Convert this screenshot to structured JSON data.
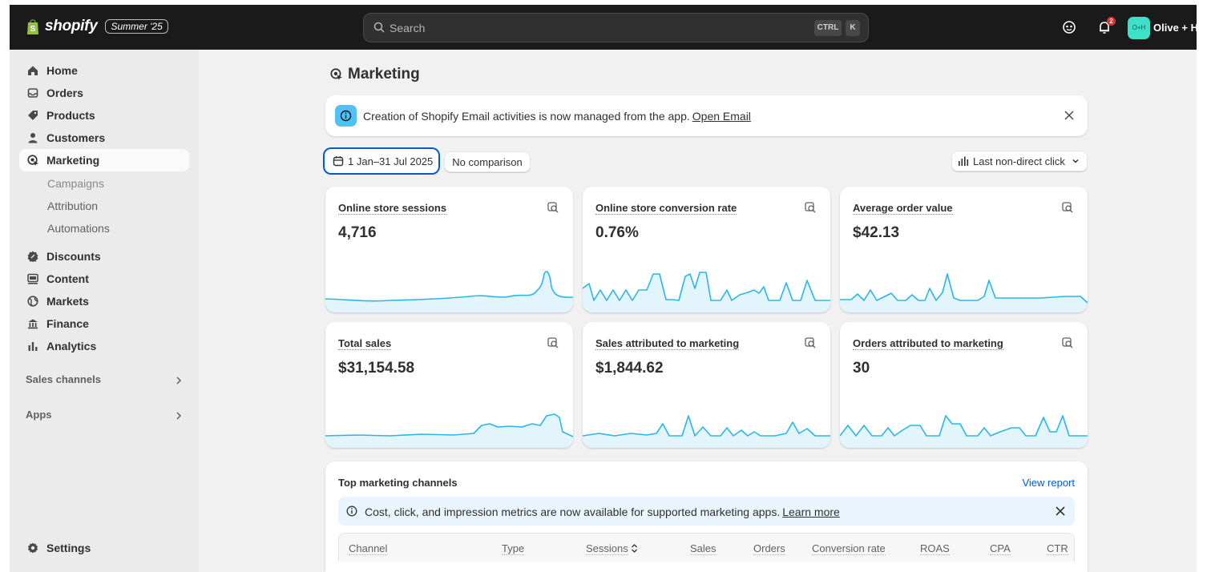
{
  "topbar": {
    "brand": "shopify",
    "edition_badge": "Summer '25",
    "search_placeholder": "Search",
    "shortcut_key1": "CTRL",
    "shortcut_key2": "K",
    "notification_count": "2",
    "avatar_initials": "O+H",
    "store_name": "Olive + He",
    "accent_color": "#3ee0c8"
  },
  "sidebar": {
    "items": [
      {
        "label": "Home",
        "icon": "home-icon"
      },
      {
        "label": "Orders",
        "icon": "inbox-icon"
      },
      {
        "label": "Products",
        "icon": "tag-icon"
      },
      {
        "label": "Customers",
        "icon": "person-icon"
      },
      {
        "label": "Marketing",
        "icon": "target-icon"
      }
    ],
    "marketing_sub": [
      "Campaigns",
      "Attribution",
      "Automations"
    ],
    "items2": [
      {
        "label": "Discounts",
        "icon": "discount-icon"
      },
      {
        "label": "Content",
        "icon": "content-icon"
      },
      {
        "label": "Markets",
        "icon": "globe-icon"
      },
      {
        "label": "Finance",
        "icon": "bank-icon"
      },
      {
        "label": "Analytics",
        "icon": "bar-chart-icon"
      }
    ],
    "sales_channels": "Sales channels",
    "apps": "Apps",
    "settings": "Settings"
  },
  "main": {
    "title": "Marketing",
    "banner": {
      "text": "Creation of Shopify Email activities is now managed from the app.",
      "link": "Open Email"
    },
    "date_range": "1 Jan–31 Jul 2025",
    "comparison": "No comparison",
    "attribution_model": "Last non-direct click",
    "metrics": [
      {
        "title": "Online store sessions",
        "value": "4,716"
      },
      {
        "title": "Online store conversion rate",
        "value": "0.76%"
      },
      {
        "title": "Average order value",
        "value": "$42.13"
      },
      {
        "title": "Total sales",
        "value": "$31,154.58"
      },
      {
        "title": "Sales attributed to marketing",
        "value": "$1,844.62"
      },
      {
        "title": "Orders attributed to marketing",
        "value": "30"
      }
    ],
    "channels": {
      "title": "Top marketing channels",
      "view_report": "View report",
      "info_text": "Cost, click, and impression metrics are now available for supported marketing apps.",
      "info_link": "Learn more",
      "columns": [
        "Channel",
        "Type",
        "Sessions",
        "Sales",
        "Orders",
        "Conversion rate",
        "ROAS",
        "CPA",
        "CTR"
      ]
    },
    "spark_color": "#2ab7e8"
  }
}
